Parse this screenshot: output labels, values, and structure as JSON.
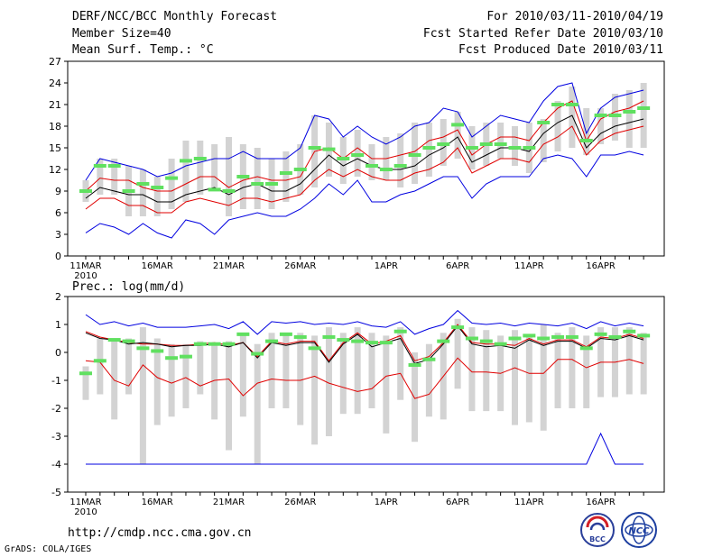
{
  "header": {
    "title": "DERF/NCC/BCC Monthly Forecast",
    "member_size": "Member Size=40",
    "variable": "Mean Surf. Temp.: °C",
    "forecast_period": "For 2010/03/11-2010/04/19",
    "fcst_started": "Fcst Started Refer Date 2010/03/10",
    "fcst_produced": "Fcst Produced Date 2010/03/11"
  },
  "panel2_label": "Prec.: log(mm/d)",
  "footer": {
    "url": "http://cmdp.ncc.cma.gov.cn",
    "credit": "GrADS: COLA/IGES",
    "logo_bcc_text": "BCC",
    "logo_ncc_text": "NCC"
  },
  "colors": {
    "box": "#d3d3d3",
    "observed": "#60e060",
    "ensemble_mean": "#000000",
    "inner_spread": "#e00000",
    "outer_spread": "#0000e0"
  },
  "chart_data": [
    {
      "type": "box-spread",
      "name": "temperature",
      "ylabel": "Mean Surf. Temp.: °C",
      "ylim": [
        0,
        27
      ],
      "yticks": [
        0,
        3,
        6,
        9,
        12,
        15,
        18,
        21,
        24,
        27
      ],
      "x": [
        "11MAR",
        "12MAR",
        "13MAR",
        "14MAR",
        "15MAR",
        "16MAR",
        "17MAR",
        "18MAR",
        "19MAR",
        "20MAR",
        "21MAR",
        "22MAR",
        "23MAR",
        "24MAR",
        "25MAR",
        "26MAR",
        "27MAR",
        "28MAR",
        "29MAR",
        "30MAR",
        "31MAR",
        "1APR",
        "2APR",
        "3APR",
        "4APR",
        "5APR",
        "6APR",
        "7APR",
        "8APR",
        "9APR",
        "10APR",
        "11APR",
        "12APR",
        "13APR",
        "14APR",
        "15APR",
        "16APR",
        "17APR",
        "18APR",
        "19APR"
      ],
      "xtick_labels": [
        {
          "index": 0,
          "label": "11MAR"
        },
        {
          "index": 5,
          "label": "16MAR"
        },
        {
          "index": 10,
          "label": "21MAR"
        },
        {
          "index": 15,
          "label": "26MAR"
        },
        {
          "index": 21,
          "label": "1APR"
        },
        {
          "index": 26,
          "label": "6APR"
        },
        {
          "index": 31,
          "label": "11APR"
        },
        {
          "index": 36,
          "label": "16APR"
        }
      ],
      "year_label": "2010",
      "box_low": [
        7.5,
        8.5,
        8.5,
        5.5,
        5.5,
        5.5,
        6.5,
        7.5,
        8.5,
        9.5,
        5.5,
        6.5,
        6.5,
        6.5,
        7.5,
        8.5,
        9.5,
        11.0,
        10.0,
        11.0,
        10.5,
        10.5,
        9.5,
        10.0,
        11.0,
        12.5,
        13.5,
        12.0,
        12.5,
        13.5,
        12.5,
        11.5,
        13.0,
        14.5,
        15.0,
        14.0,
        15.5,
        16.0,
        15.0,
        15.0
      ],
      "box_high": [
        10.5,
        13.5,
        13.5,
        12.5,
        12.0,
        11.0,
        13.5,
        16.0,
        16.0,
        15.5,
        16.5,
        15.5,
        15.0,
        13.5,
        14.5,
        15.5,
        19.5,
        18.5,
        16.5,
        17.5,
        15.5,
        16.5,
        17.0,
        18.5,
        18.5,
        19.0,
        20.0,
        18.0,
        18.5,
        18.5,
        18.0,
        18.5,
        19.0,
        21.5,
        23.5,
        20.5,
        20.5,
        22.5,
        23.0,
        24.0
      ],
      "observed": [
        9.0,
        12.5,
        12.5,
        9.0,
        10.0,
        9.5,
        10.8,
        13.2,
        13.5,
        9.2,
        9.0,
        11.0,
        10.0,
        10.0,
        11.5,
        12.0,
        15.0,
        14.8,
        13.5,
        14.0,
        12.5,
        12.0,
        12.5,
        14.0,
        15.0,
        15.5,
        18.2,
        15.0,
        15.5,
        15.5,
        15.0,
        15.0,
        18.5,
        21.0,
        21.0,
        16.0,
        19.5,
        19.5,
        20.0,
        20.5
      ],
      "ensemble_mean": [
        8.0,
        9.5,
        9.0,
        8.5,
        8.5,
        7.5,
        7.5,
        8.5,
        9.0,
        9.5,
        8.5,
        9.5,
        10.0,
        9.0,
        9.0,
        10.0,
        12.0,
        14.0,
        12.5,
        13.5,
        12.5,
        12.0,
        12.0,
        12.5,
        14.0,
        15.0,
        16.5,
        13.0,
        14.0,
        15.0,
        15.0,
        14.5,
        17.0,
        18.5,
        19.5,
        15.0,
        17.0,
        18.0,
        18.5,
        19.0
      ],
      "inner_high": [
        9.0,
        10.8,
        10.5,
        10.5,
        9.5,
        9.0,
        9.0,
        10.0,
        11.0,
        11.0,
        9.5,
        10.5,
        11.0,
        10.5,
        10.5,
        11.0,
        14.5,
        15.0,
        13.5,
        15.0,
        13.5,
        13.5,
        14.0,
        14.5,
        16.0,
        16.5,
        17.5,
        14.0,
        15.5,
        16.5,
        16.5,
        16.0,
        18.5,
        20.5,
        21.5,
        16.0,
        19.0,
        20.0,
        20.5,
        21.5
      ],
      "inner_low": [
        6.5,
        8.0,
        8.0,
        7.0,
        7.0,
        6.0,
        6.0,
        7.5,
        8.0,
        7.5,
        7.0,
        8.0,
        8.0,
        7.5,
        8.0,
        8.5,
        10.5,
        12.0,
        11.0,
        12.0,
        11.0,
        10.5,
        10.5,
        11.5,
        12.0,
        13.0,
        15.0,
        11.5,
        12.5,
        13.5,
        13.5,
        13.0,
        15.5,
        16.5,
        18.0,
        14.0,
        16.0,
        17.0,
        17.5,
        18.0
      ],
      "outer_high": [
        10.5,
        13.5,
        13.0,
        12.5,
        12.0,
        11.0,
        11.5,
        12.5,
        13.0,
        13.5,
        13.5,
        14.5,
        13.5,
        13.5,
        13.5,
        15.0,
        19.5,
        19.0,
        16.5,
        18.0,
        16.5,
        15.5,
        16.5,
        18.0,
        18.5,
        20.5,
        20.0,
        16.5,
        18.0,
        19.5,
        19.0,
        18.5,
        21.5,
        23.5,
        24.0,
        17.0,
        20.5,
        22.0,
        22.5,
        23.0
      ],
      "outer_low": [
        3.2,
        4.5,
        4.0,
        3.0,
        4.5,
        3.2,
        2.5,
        5.0,
        4.5,
        3.0,
        5.0,
        5.5,
        6.0,
        5.5,
        5.5,
        6.5,
        8.0,
        10.0,
        8.5,
        10.5,
        7.5,
        7.5,
        8.5,
        9.0,
        10.0,
        11.0,
        11.0,
        8.0,
        10.0,
        11.0,
        11.0,
        11.0,
        13.5,
        14.0,
        13.5,
        11.0,
        14.0,
        14.0,
        14.5,
        14.0
      ]
    },
    {
      "type": "box-spread",
      "name": "precipitation",
      "ylabel": "Prec.: log(mm/d)",
      "ylim": [
        -5,
        2
      ],
      "yticks": [
        -5,
        -4,
        -3,
        -2,
        -1,
        0,
        1,
        2
      ],
      "x": [
        "11MAR",
        "12MAR",
        "13MAR",
        "14MAR",
        "15MAR",
        "16MAR",
        "17MAR",
        "18MAR",
        "19MAR",
        "20MAR",
        "21MAR",
        "22MAR",
        "23MAR",
        "24MAR",
        "25MAR",
        "26MAR",
        "27MAR",
        "28MAR",
        "29MAR",
        "30MAR",
        "31MAR",
        "1APR",
        "2APR",
        "3APR",
        "4APR",
        "5APR",
        "6APR",
        "7APR",
        "8APR",
        "9APR",
        "10APR",
        "11APR",
        "12APR",
        "13APR",
        "14APR",
        "15APR",
        "16APR",
        "17APR",
        "18APR",
        "19APR"
      ],
      "xtick_labels": [
        {
          "index": 0,
          "label": "11MAR"
        },
        {
          "index": 5,
          "label": "16MAR"
        },
        {
          "index": 10,
          "label": "21MAR"
        },
        {
          "index": 15,
          "label": "26MAR"
        },
        {
          "index": 21,
          "label": "1APR"
        },
        {
          "index": 26,
          "label": "6APR"
        },
        {
          "index": 31,
          "label": "11APR"
        },
        {
          "index": 36,
          "label": "16APR"
        }
      ],
      "year_label": "2010",
      "box_low": [
        -1.7,
        -1.5,
        -2.4,
        -1.5,
        -4.0,
        -2.6,
        -2.3,
        -2.0,
        -1.5,
        -2.4,
        -3.5,
        -2.3,
        -4.0,
        -2.0,
        -2.0,
        -2.6,
        -3.3,
        -3.0,
        -2.2,
        -2.2,
        -2.0,
        -2.9,
        -1.7,
        -3.2,
        -2.3,
        -2.4,
        -1.3,
        -2.1,
        -2.1,
        -2.1,
        -2.6,
        -2.5,
        -2.8,
        -2.0,
        -2.0,
        -2.0,
        -1.6,
        -1.6,
        -1.5,
        -1.5
      ],
      "box_high": [
        -0.5,
        0.5,
        0.5,
        0.5,
        0.9,
        0.5,
        0.3,
        0.3,
        0.4,
        0.3,
        0.4,
        0.7,
        0.3,
        0.7,
        0.6,
        0.7,
        0.6,
        0.9,
        0.7,
        0.9,
        0.7,
        0.6,
        0.9,
        0.0,
        0.3,
        0.7,
        1.2,
        0.9,
        0.8,
        0.6,
        0.8,
        0.6,
        1.0,
        0.7,
        0.9,
        0.6,
        0.9,
        0.9,
        0.9,
        0.7
      ],
      "observed": [
        -0.75,
        -0.3,
        0.45,
        0.4,
        0.15,
        0.05,
        -0.2,
        -0.15,
        0.3,
        0.3,
        0.3,
        0.65,
        -0.05,
        0.4,
        0.65,
        0.55,
        0.15,
        0.55,
        0.45,
        0.4,
        0.35,
        0.35,
        0.75,
        -0.45,
        -0.25,
        0.4,
        0.9,
        0.5,
        0.4,
        0.3,
        0.5,
        0.6,
        0.5,
        0.55,
        0.55,
        0.15,
        0.65,
        0.55,
        0.75,
        0.6
      ],
      "ensemble_mean": [
        0.7,
        0.5,
        0.45,
        0.3,
        0.35,
        0.3,
        0.2,
        0.25,
        0.25,
        0.3,
        0.2,
        0.35,
        -0.2,
        0.35,
        0.25,
        0.35,
        0.35,
        -0.35,
        0.3,
        0.65,
        0.2,
        0.35,
        0.5,
        -0.4,
        -0.25,
        0.3,
        0.95,
        0.3,
        0.2,
        0.25,
        0.15,
        0.45,
        0.25,
        0.4,
        0.4,
        0.15,
        0.5,
        0.45,
        0.6,
        0.45
      ],
      "inner_high": [
        0.75,
        0.55,
        0.45,
        0.35,
        0.3,
        0.3,
        0.25,
        0.25,
        0.3,
        0.35,
        0.25,
        0.35,
        -0.15,
        0.4,
        0.3,
        0.4,
        0.4,
        -0.3,
        0.35,
        0.7,
        0.3,
        0.4,
        0.6,
        -0.3,
        -0.15,
        0.35,
        1.0,
        0.35,
        0.3,
        0.3,
        0.25,
        0.5,
        0.3,
        0.45,
        0.45,
        0.2,
        0.55,
        0.5,
        0.65,
        0.5
      ],
      "inner_low": [
        -0.3,
        -0.35,
        -1.0,
        -1.2,
        -0.45,
        -0.9,
        -1.1,
        -0.9,
        -1.2,
        -1.0,
        -0.95,
        -1.55,
        -1.1,
        -0.95,
        -1.0,
        -1.0,
        -0.85,
        -1.1,
        -1.25,
        -1.4,
        -1.3,
        -0.85,
        -0.75,
        -1.65,
        -1.5,
        -0.85,
        -0.2,
        -0.7,
        -0.7,
        -0.75,
        -0.55,
        -0.75,
        -0.75,
        -0.25,
        -0.25,
        -0.55,
        -0.35,
        -0.35,
        -0.25,
        -0.4
      ],
      "outer_high": [
        1.35,
        1.0,
        1.1,
        0.95,
        1.05,
        0.9,
        0.9,
        0.9,
        0.95,
        1.0,
        0.85,
        1.1,
        0.65,
        1.1,
        1.05,
        1.1,
        1.0,
        1.05,
        1.0,
        1.1,
        0.95,
        0.9,
        1.1,
        0.65,
        0.85,
        1.0,
        1.5,
        1.05,
        1.0,
        1.05,
        0.95,
        1.05,
        1.0,
        0.95,
        1.05,
        0.85,
        1.1,
        0.95,
        1.05,
        0.95
      ],
      "outer_low": [
        -4.0,
        -4.0,
        -4.0,
        -4.0,
        -4.0,
        -4.0,
        -4.0,
        -4.0,
        -4.0,
        -4.0,
        -4.0,
        -4.0,
        -4.0,
        -4.0,
        -4.0,
        -4.0,
        -4.0,
        -4.0,
        -4.0,
        -4.0,
        -4.0,
        -4.0,
        -4.0,
        -4.0,
        -4.0,
        -4.0,
        -4.0,
        -4.0,
        -4.0,
        -4.0,
        -4.0,
        -4.0,
        -4.0,
        -4.0,
        -4.0,
        -4.0,
        -2.9,
        -4.0,
        -4.0,
        -4.0
      ]
    }
  ]
}
